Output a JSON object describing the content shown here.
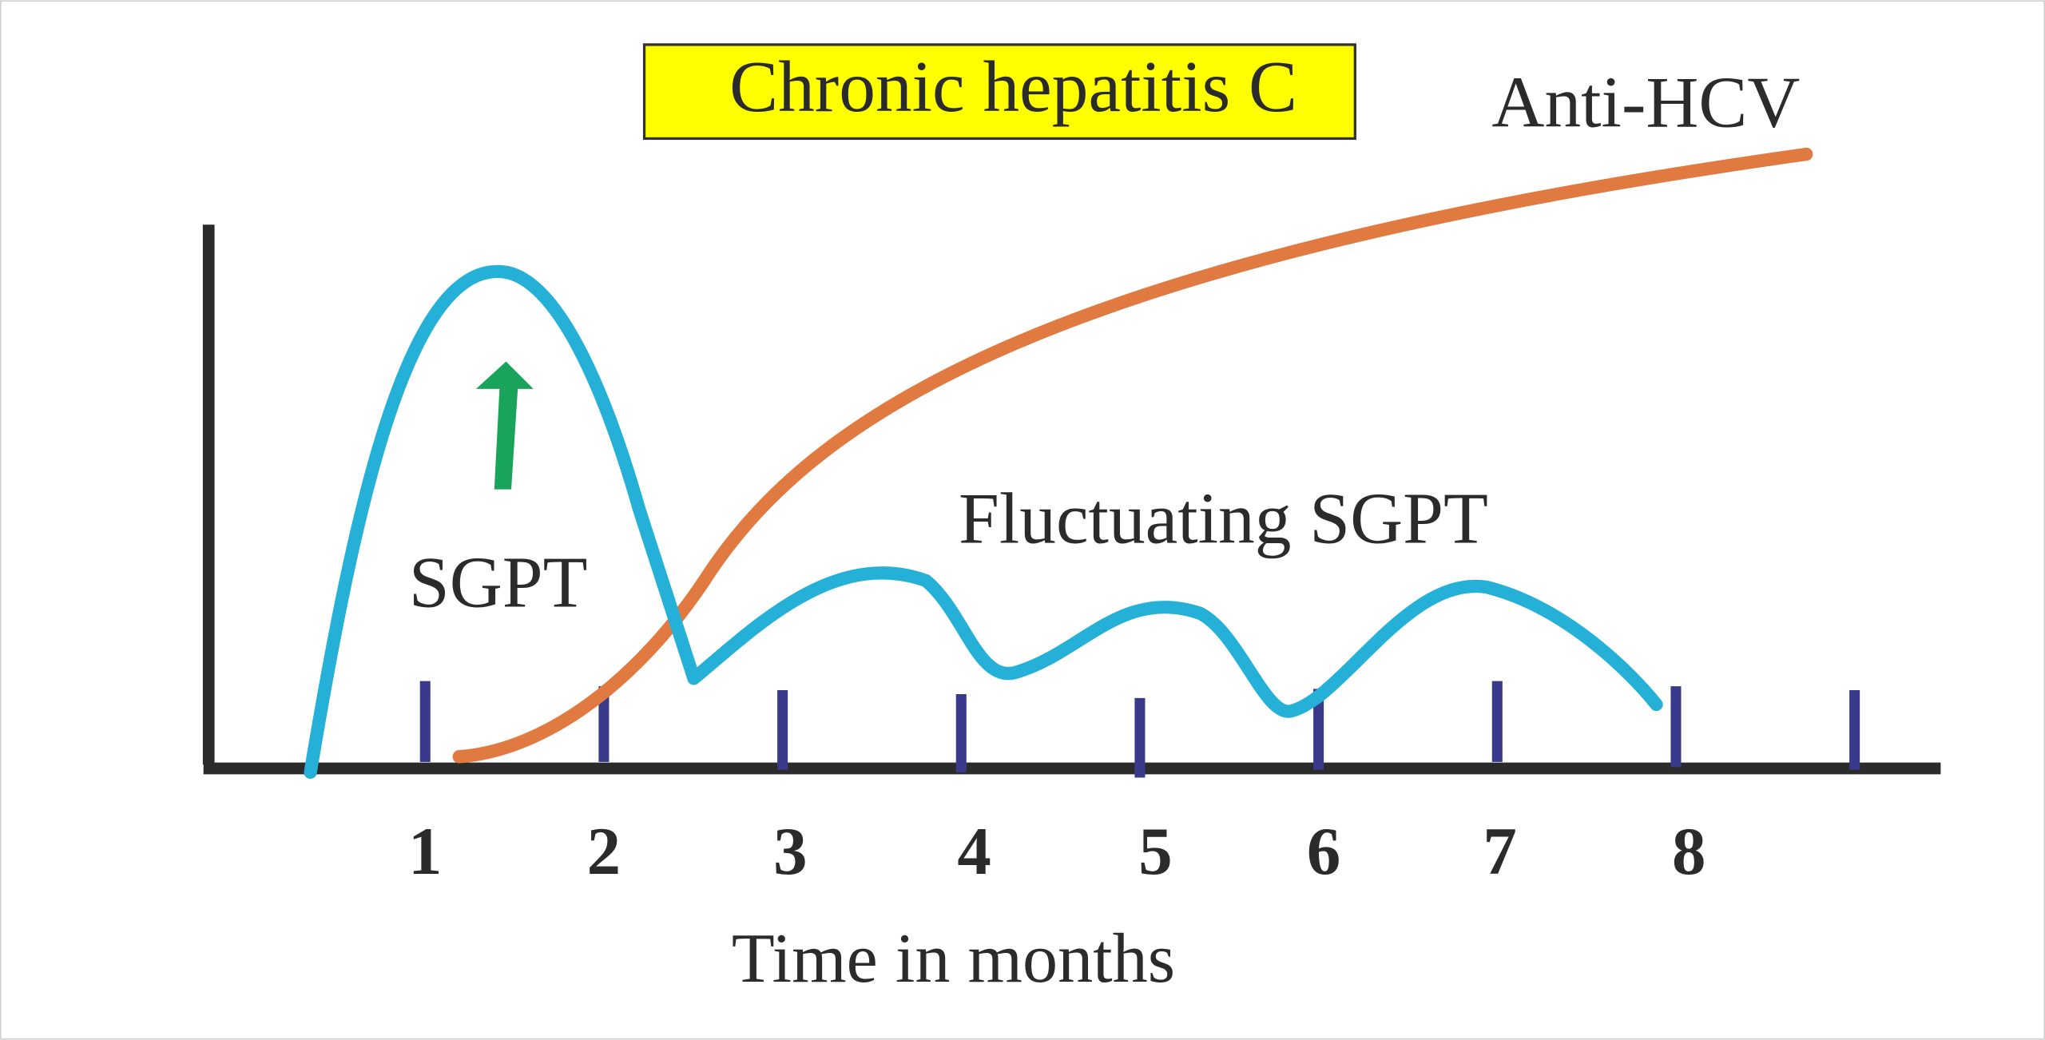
{
  "title": "Chronic hepatitis C",
  "labels": {
    "anti_hcv": "Anti-HCV",
    "sgpt": "SGPT",
    "fluctuating_sgpt": "Fluctuating SGPT"
  },
  "x_axis": {
    "ticks": [
      "1",
      "2",
      "3",
      "4",
      "5",
      "6",
      "7",
      "8"
    ],
    "title": "Time in months"
  }
}
